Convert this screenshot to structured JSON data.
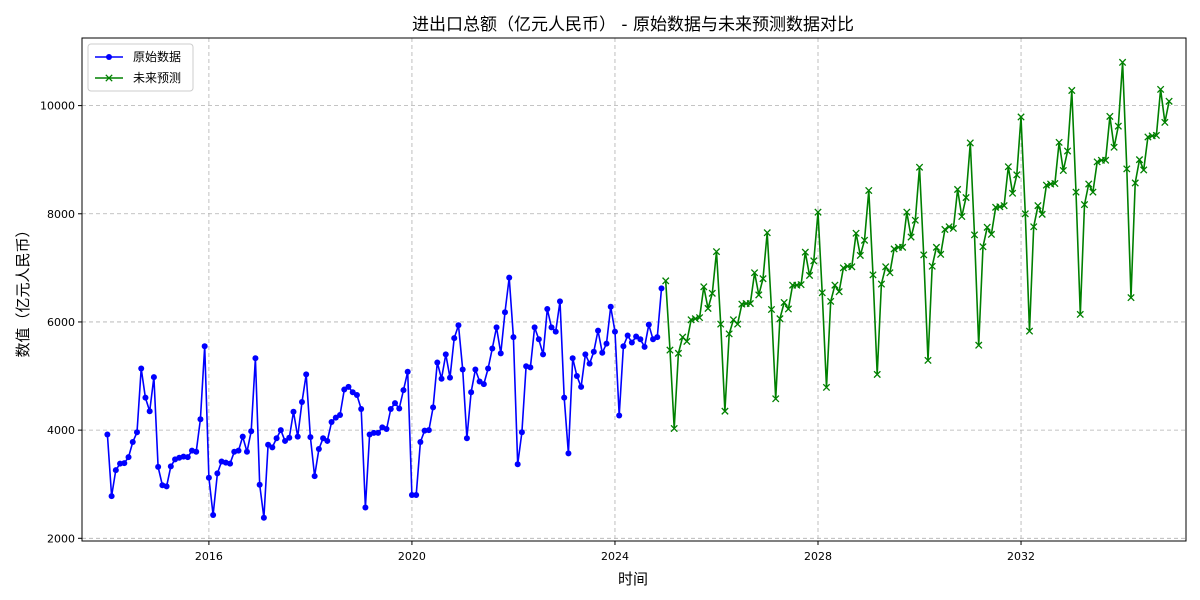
{
  "chart_data": {
    "type": "line",
    "title": "进出口总额（亿元人民币） - 原始数据与未来预测数据对比",
    "xlabel": "时间",
    "ylabel": "数值（亿元人民币）",
    "xlim": [
      2013.5,
      2035.25
    ],
    "ylim": [
      1950,
      11250
    ],
    "x_ticks": [
      2016,
      2020,
      2024,
      2028,
      2032
    ],
    "y_ticks": [
      2000,
      4000,
      6000,
      8000,
      10000
    ],
    "grid": true,
    "legend_position": "upper-left",
    "series": [
      {
        "name": "原始数据",
        "color": "#0000ff",
        "marker": "circle",
        "start": "2014-01",
        "step": "month",
        "values": [
          3920,
          2780,
          3260,
          3380,
          3390,
          3500,
          3780,
          3960,
          5140,
          4600,
          4350,
          4980,
          3320,
          2980,
          2960,
          3330,
          3460,
          3490,
          3510,
          3500,
          3620,
          3600,
          4200,
          5550,
          3120,
          2430,
          3200,
          3420,
          3400,
          3380,
          3600,
          3620,
          3880,
          3600,
          3980,
          5330,
          2990,
          2380,
          3730,
          3680,
          3850,
          4000,
          3800,
          3860,
          4340,
          3880,
          4520,
          5030,
          3870,
          3150,
          3650,
          3850,
          3800,
          4150,
          4230,
          4280,
          4750,
          4800,
          4700,
          4650,
          4390,
          2570,
          3920,
          3950,
          3950,
          4050,
          4020,
          4390,
          4500,
          4400,
          4740,
          5080,
          2800,
          2800,
          3780,
          3990,
          4000,
          4420,
          5250,
          4950,
          5400,
          4970,
          5700,
          5940,
          5120,
          3850,
          4700,
          5120,
          4900,
          4850,
          5140,
          5510,
          5900,
          5420,
          6180,
          6820,
          5720,
          3370,
          3960,
          5180,
          5160,
          5900,
          5680,
          5400,
          6240,
          5900,
          5820,
          6380,
          4600,
          3570,
          5330,
          5000,
          4800,
          5400,
          5230,
          5450,
          5840,
          5430,
          5600,
          6280,
          5820,
          4270,
          5550,
          5750,
          5620,
          5730,
          5680,
          5540,
          5950,
          5680,
          5720,
          6620
        ]
      },
      {
        "name": "未来预测",
        "color": "#008000",
        "marker": "x",
        "start": "2025-01",
        "step": "month",
        "values": [
          6760,
          5480,
          4030,
          5420,
          5720,
          5640,
          6040,
          6060,
          6080,
          6650,
          6250,
          6530,
          7300,
          5960,
          4350,
          5780,
          6040,
          5960,
          6330,
          6340,
          6340,
          6910,
          6500,
          6800,
          7650,
          6230,
          4580,
          6060,
          6360,
          6240,
          6680,
          6680,
          6690,
          7290,
          6860,
          7130,
          8030,
          6540,
          4790,
          6380,
          6680,
          6560,
          7000,
          7030,
          7020,
          7640,
          7230,
          7510,
          8430,
          6870,
          5030,
          6700,
          7020,
          6910,
          7350,
          7380,
          7380,
          8030,
          7570,
          7880,
          8860,
          7240,
          5290,
          7030,
          7380,
          7250,
          7710,
          7760,
          7730,
          8450,
          7950,
          8300,
          9310,
          7610,
          5570,
          7390,
          7750,
          7620,
          8120,
          8130,
          8150,
          8870,
          8380,
          8720,
          9790,
          8000,
          5830,
          7760,
          8150,
          7990,
          8530,
          8550,
          8560,
          9320,
          8800,
          9160,
          10280,
          8400,
          6140,
          8170,
          8550,
          8400,
          8960,
          8990,
          8990,
          9800,
          9230,
          9620,
          10800,
          8830,
          6450,
          8570,
          9000,
          8810,
          9420,
          9440,
          9450,
          10300,
          9690,
          10080
        ]
      }
    ]
  }
}
